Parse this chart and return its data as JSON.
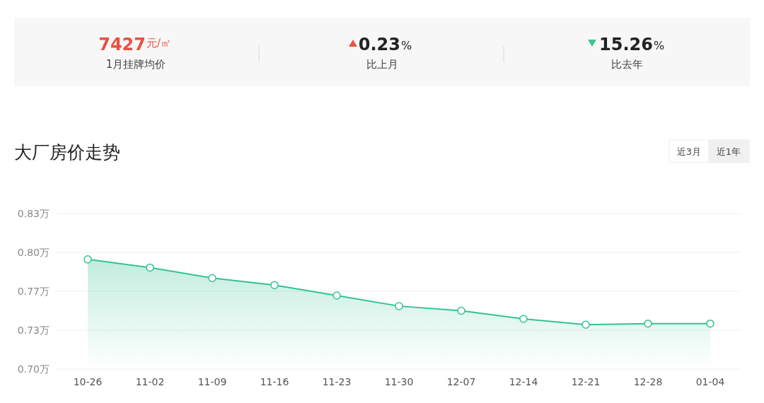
{
  "chart_data": {
    "type": "area",
    "title": "大厂房价走势",
    "annotations": [
      "7427",
      "元/㎡",
      "1月挂牌均价",
      "0.23",
      "%",
      "比上月",
      "15.26",
      "%",
      "比去年",
      "近3月",
      "近1年"
    ],
    "categories": [
      "10-26",
      "11-02",
      "11-09",
      "11-16",
      "11-23",
      "11-30",
      "12-07",
      "12-14",
      "12-21",
      "12-28",
      "01-04"
    ],
    "values": [
      0.794,
      0.787,
      0.778,
      0.772,
      0.763,
      0.754,
      0.75,
      0.743,
      0.738,
      0.739,
      0.739
    ],
    "color": "#34c38f",
    "ylim": [
      0.7,
      0.8333
    ],
    "yticks": [
      {
        "value": 0.7,
        "label": "0.70万"
      },
      {
        "value": 0.7333,
        "label": "0.73万"
      },
      {
        "value": 0.7667,
        "label": "0.77万"
      },
      {
        "value": 0.8,
        "label": "0.80万"
      },
      {
        "value": 0.8333,
        "label": "0.83万"
      }
    ],
    "grid": "y",
    "marker": "circle"
  }
}
